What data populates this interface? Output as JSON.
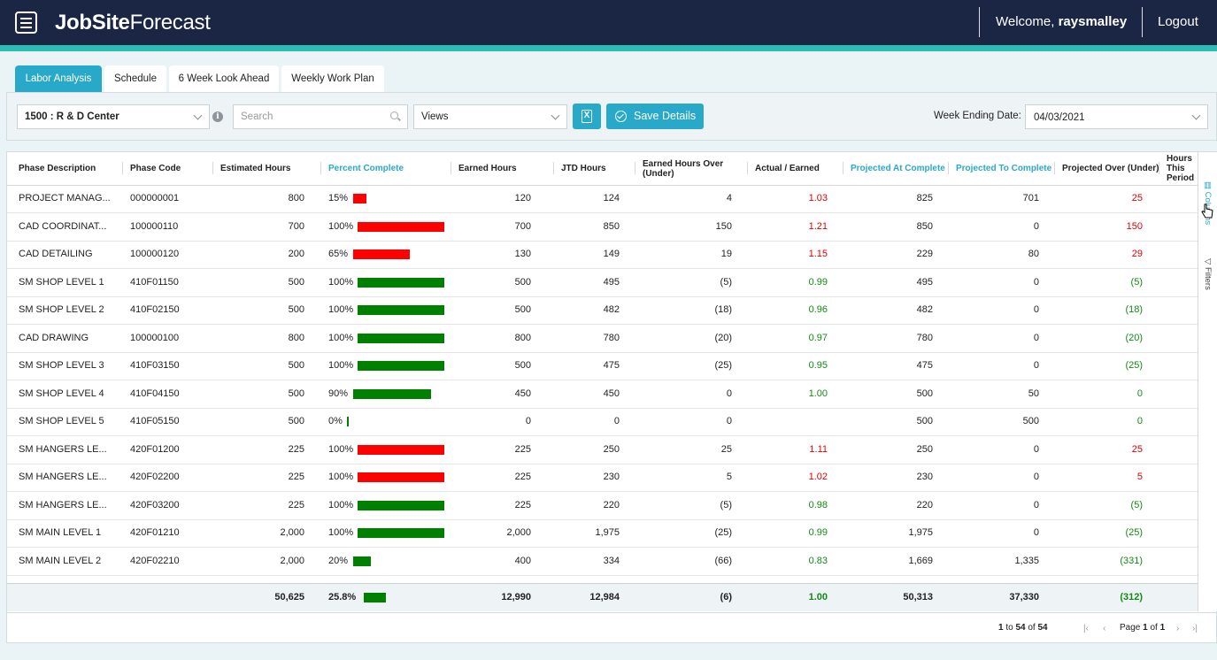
{
  "app": {
    "logo_bold": "JobSite",
    "logo_light": "Forecast",
    "welcome_prefix": "Welcome,",
    "username": "raysmalley",
    "logout": "Logout"
  },
  "tabs": [
    {
      "label": "Labor Analysis",
      "active": true
    },
    {
      "label": "Schedule",
      "active": false
    },
    {
      "label": "6 Week Look Ahead",
      "active": false
    },
    {
      "label": "Weekly Work Plan",
      "active": false
    }
  ],
  "toolbar": {
    "project": "1500 : R & D Center",
    "search_placeholder": "Search",
    "views": "Views",
    "excel_glyph": "X",
    "save_label": "Save Details",
    "week_label": "Week Ending Date:",
    "week_value": "04/03/2021"
  },
  "columns": [
    {
      "label": "Phase Description"
    },
    {
      "label": "Phase Code"
    },
    {
      "label": "Estimated Hours"
    },
    {
      "label": "Percent Complete"
    },
    {
      "label": "Earned Hours"
    },
    {
      "label": "JTD Hours"
    },
    {
      "label": "Earned Hours Over (Under)"
    },
    {
      "label": "Actual / Earned"
    },
    {
      "label": "Projected At Complete"
    },
    {
      "label": "Projected To Complete"
    },
    {
      "label": "Projected Over (Under)"
    },
    {
      "label": "Hours This Period"
    }
  ],
  "rows": [
    {
      "desc": "PROJECT MANAG...",
      "code": "000000001",
      "est": "800",
      "pct": "15%",
      "pct_value": 15,
      "bar_color": "red",
      "earned": "120",
      "jtd": "124",
      "over": "4",
      "ae": "1.03",
      "ae_color": "red",
      "pac": "825",
      "ptc": "701",
      "pou": "25",
      "pou_color": "red"
    },
    {
      "desc": "CAD COORDINAT...",
      "code": "100000110",
      "est": "700",
      "pct": "100%",
      "pct_value": 100,
      "bar_color": "red",
      "earned": "700",
      "jtd": "850",
      "over": "150",
      "ae": "1.21",
      "ae_color": "red",
      "pac": "850",
      "ptc": "0",
      "pou": "150",
      "pou_color": "red"
    },
    {
      "desc": "CAD DETAILING",
      "code": "100000120",
      "est": "200",
      "pct": "65%",
      "pct_value": 65,
      "bar_color": "red",
      "earned": "130",
      "jtd": "149",
      "over": "19",
      "ae": "1.15",
      "ae_color": "red",
      "pac": "229",
      "ptc": "80",
      "pou": "29",
      "pou_color": "red"
    },
    {
      "desc": "SM SHOP LEVEL 1",
      "code": "410F01150",
      "est": "500",
      "pct": "100%",
      "pct_value": 100,
      "bar_color": "green",
      "earned": "500",
      "jtd": "495",
      "over": "(5)",
      "ae": "0.99",
      "ae_color": "green",
      "pac": "495",
      "ptc": "0",
      "pou": "(5)",
      "pou_color": "green"
    },
    {
      "desc": "SM SHOP LEVEL 2",
      "code": "410F02150",
      "est": "500",
      "pct": "100%",
      "pct_value": 100,
      "bar_color": "green",
      "earned": "500",
      "jtd": "482",
      "over": "(18)",
      "ae": "0.96",
      "ae_color": "green",
      "pac": "482",
      "ptc": "0",
      "pou": "(18)",
      "pou_color": "green"
    },
    {
      "desc": "CAD DRAWING",
      "code": "100000100",
      "est": "800",
      "pct": "100%",
      "pct_value": 100,
      "bar_color": "green",
      "earned": "800",
      "jtd": "780",
      "over": "(20)",
      "ae": "0.97",
      "ae_color": "green",
      "pac": "780",
      "ptc": "0",
      "pou": "(20)",
      "pou_color": "green"
    },
    {
      "desc": "SM SHOP LEVEL 3",
      "code": "410F03150",
      "est": "500",
      "pct": "100%",
      "pct_value": 100,
      "bar_color": "green",
      "earned": "500",
      "jtd": "475",
      "over": "(25)",
      "ae": "0.95",
      "ae_color": "green",
      "pac": "475",
      "ptc": "0",
      "pou": "(25)",
      "pou_color": "green"
    },
    {
      "desc": "SM SHOP LEVEL 4",
      "code": "410F04150",
      "est": "500",
      "pct": "90%",
      "pct_value": 90,
      "bar_color": "green",
      "earned": "450",
      "jtd": "450",
      "over": "0",
      "ae": "1.00",
      "ae_color": "green",
      "pac": "500",
      "ptc": "50",
      "pou": "0",
      "pou_color": "green"
    },
    {
      "desc": "SM SHOP LEVEL 5",
      "code": "410F05150",
      "est": "500",
      "pct": "0%",
      "pct_value": 0,
      "bar_color": "green",
      "earned": "0",
      "jtd": "0",
      "over": "0",
      "ae": "",
      "ae_color": "green",
      "pac": "500",
      "ptc": "500",
      "pou": "0",
      "pou_color": "green"
    },
    {
      "desc": "SM HANGERS LE...",
      "code": "420F01200",
      "est": "225",
      "pct": "100%",
      "pct_value": 100,
      "bar_color": "red",
      "earned": "225",
      "jtd": "250",
      "over": "25",
      "ae": "1.11",
      "ae_color": "red",
      "pac": "250",
      "ptc": "0",
      "pou": "25",
      "pou_color": "red"
    },
    {
      "desc": "SM HANGERS LE...",
      "code": "420F02200",
      "est": "225",
      "pct": "100%",
      "pct_value": 100,
      "bar_color": "red",
      "earned": "225",
      "jtd": "230",
      "over": "5",
      "ae": "1.02",
      "ae_color": "red",
      "pac": "230",
      "ptc": "0",
      "pou": "5",
      "pou_color": "red"
    },
    {
      "desc": "SM HANGERS LE...",
      "code": "420F03200",
      "est": "225",
      "pct": "100%",
      "pct_value": 100,
      "bar_color": "green",
      "earned": "225",
      "jtd": "220",
      "over": "(5)",
      "ae": "0.98",
      "ae_color": "green",
      "pac": "220",
      "ptc": "0",
      "pou": "(5)",
      "pou_color": "green"
    },
    {
      "desc": "SM MAIN LEVEL 1",
      "code": "420F01210",
      "est": "2,000",
      "pct": "100%",
      "pct_value": 100,
      "bar_color": "green",
      "earned": "2,000",
      "jtd": "1,975",
      "over": "(25)",
      "ae": "0.99",
      "ae_color": "green",
      "pac": "1,975",
      "ptc": "0",
      "pou": "(25)",
      "pou_color": "green"
    },
    {
      "desc": "SM MAIN LEVEL 2",
      "code": "420F02210",
      "est": "2,000",
      "pct": "20%",
      "pct_value": 20,
      "bar_color": "green",
      "earned": "400",
      "jtd": "334",
      "over": "(66)",
      "ae": "0.83",
      "ae_color": "green",
      "pac": "1,669",
      "ptc": "1,335",
      "pou": "(331)",
      "pou_color": "green"
    }
  ],
  "totals": {
    "est": "50,625",
    "pct": "25.8%",
    "pct_value": 25.8,
    "earned": "12,990",
    "jtd": "12,984",
    "over": "(6)",
    "ae": "1.00",
    "pac": "50,313",
    "ptc": "37,330",
    "pou": "(312)"
  },
  "side": {
    "columns": "Columns",
    "filters": "Filters"
  },
  "pager": {
    "from": "1",
    "to_word": "to",
    "to": "54",
    "of_word": "of",
    "total": "54",
    "page_word": "Page",
    "page": "1",
    "page_of": "of",
    "pages": "1"
  },
  "colors": {
    "red": "#ff0000",
    "green": "#008000",
    "accent": "#29a9c9",
    "header": "#1b2544",
    "strip": "#2bbfb3"
  },
  "icons": {
    "menu": "hamburger-icon",
    "info": "info-icon",
    "search": "search-icon",
    "excel": "excel-icon",
    "save": "check-circle-icon",
    "columns": "columns-icon",
    "filters": "filter-icon"
  }
}
